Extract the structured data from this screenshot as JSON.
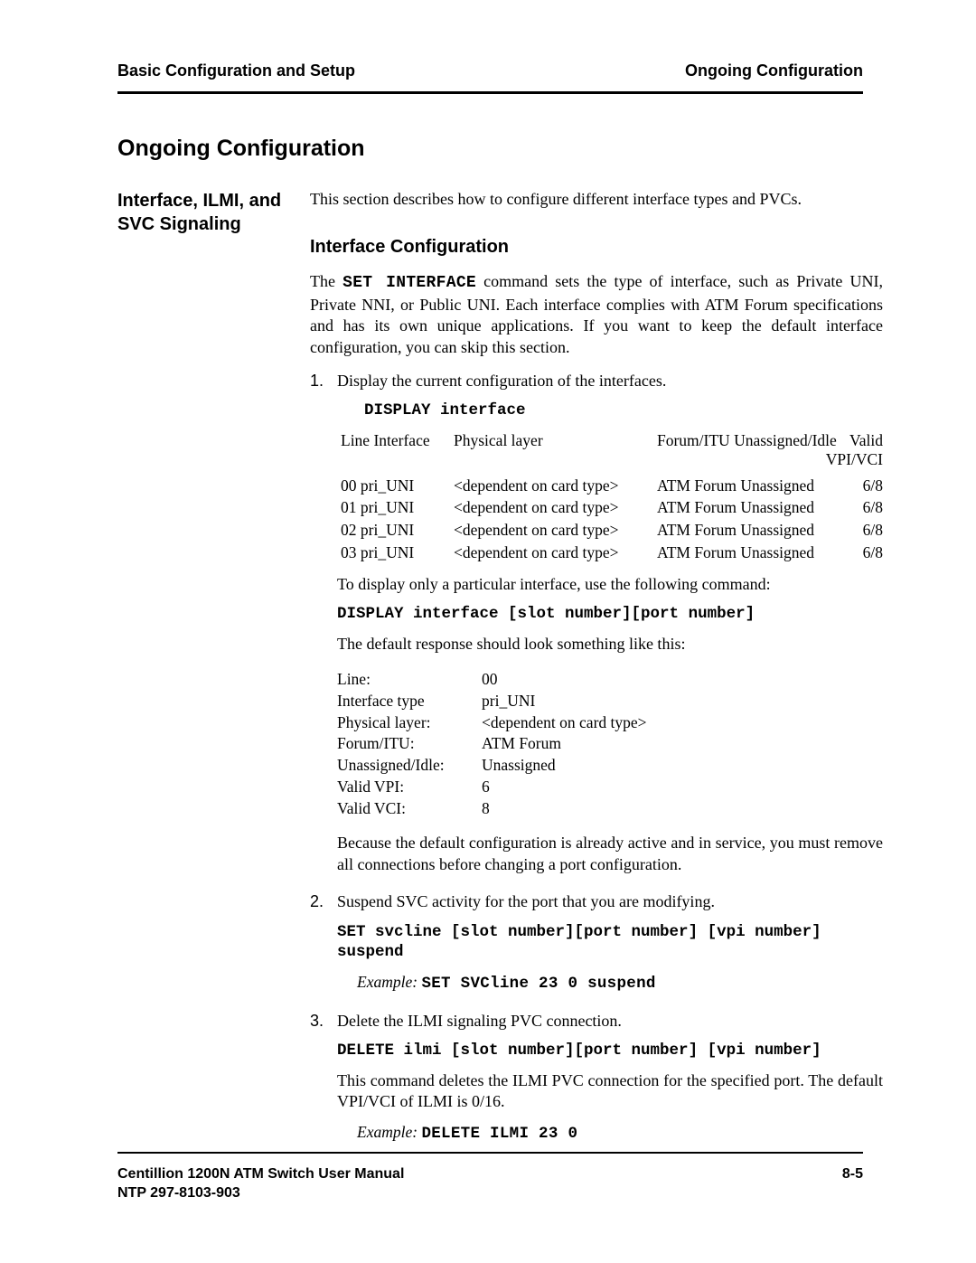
{
  "header": {
    "left": "Basic Configuration and Setup",
    "right": "Ongoing Configuration"
  },
  "section_title": "Ongoing Configuration",
  "side_heading": "Interface, ILMI, and SVC Signaling",
  "intro": "This section describes how to configure different interface types and PVCs.",
  "subsection": "Interface Configuration",
  "para1_pre": "The ",
  "para1_cmd": "SET INTERFACE",
  "para1_post": " command sets the type of interface, such as Private UNI, Private NNI, or Public UNI. Each interface complies with ATM Forum specifications and has its own unique applications. If you want to keep the default interface configuration, you can skip this section.",
  "step1": {
    "num": "1.",
    "text": "Display the current configuration of the interfaces.",
    "cmd": "DISPLAY interface",
    "table_header": {
      "c1": "Line Interface",
      "c2": "Physical layer",
      "c3": "Forum/ITU Unassigned/Idle",
      "c4": "Valid",
      "c4b": "VPI/VCI"
    },
    "rows": [
      {
        "line": "00 pri_UNI",
        "phys": "<dependent on card type>",
        "fitu": "ATM Forum Unassigned",
        "vpi": "6/8"
      },
      {
        "line": "01 pri_UNI",
        "phys": "<dependent on card type>",
        "fitu": "ATM Forum Unassigned",
        "vpi": "6/8"
      },
      {
        "line": "02 pri_UNI",
        "phys": "<dependent on card type>",
        "fitu": "ATM Forum Unassigned",
        "vpi": "6/8"
      },
      {
        "line": "03 pri_UNI",
        "phys": "<dependent on card type>",
        "fitu": "ATM Forum Unassigned",
        "vpi": "6/8"
      }
    ],
    "after1": "To display only a particular interface, use the following command:",
    "cmd2": "DISPLAY interface [slot number][port number]",
    "after2": "The default response should look something like this:",
    "detail": [
      {
        "k": "Line:",
        "v": "00"
      },
      {
        "k": "Interface type",
        "v": "pri_UNI"
      },
      {
        "k": "Physical layer:",
        "v": "<dependent on card type>"
      },
      {
        "k": "Forum/ITU:",
        "v": "ATM Forum"
      },
      {
        "k": "Unassigned/Idle:",
        "v": "Unassigned"
      },
      {
        "k": "Valid VPI:",
        "v": "6"
      },
      {
        "k": "Valid VCI:",
        "v": "8"
      }
    ],
    "after3": "Because the default configuration is already active and in service, you must remove all connections before changing a port configuration."
  },
  "step2": {
    "num": "2.",
    "text": "Suspend SVC activity for the port that you are modifying.",
    "cmd": "SET svcline [slot number][port number] [vpi number] suspend",
    "example_label": "Example:",
    "example_cmd": "SET SVCline 23 0 suspend"
  },
  "step3": {
    "num": "3.",
    "text": "Delete the ILMI signaling PVC connection.",
    "cmd": "DELETE ilmi [slot number][port number] [vpi number]",
    "after": "This command deletes the ILMI PVC connection for the specified port.  The default VPI/VCI of ILMI is 0/16.",
    "example_label": "Example:",
    "example_cmd": "DELETE ILMI 23 0"
  },
  "footer": {
    "left1": "Centillion 1200N ATM Switch User Manual",
    "left2": "NTP 297-8103-903",
    "right": "8-5"
  }
}
